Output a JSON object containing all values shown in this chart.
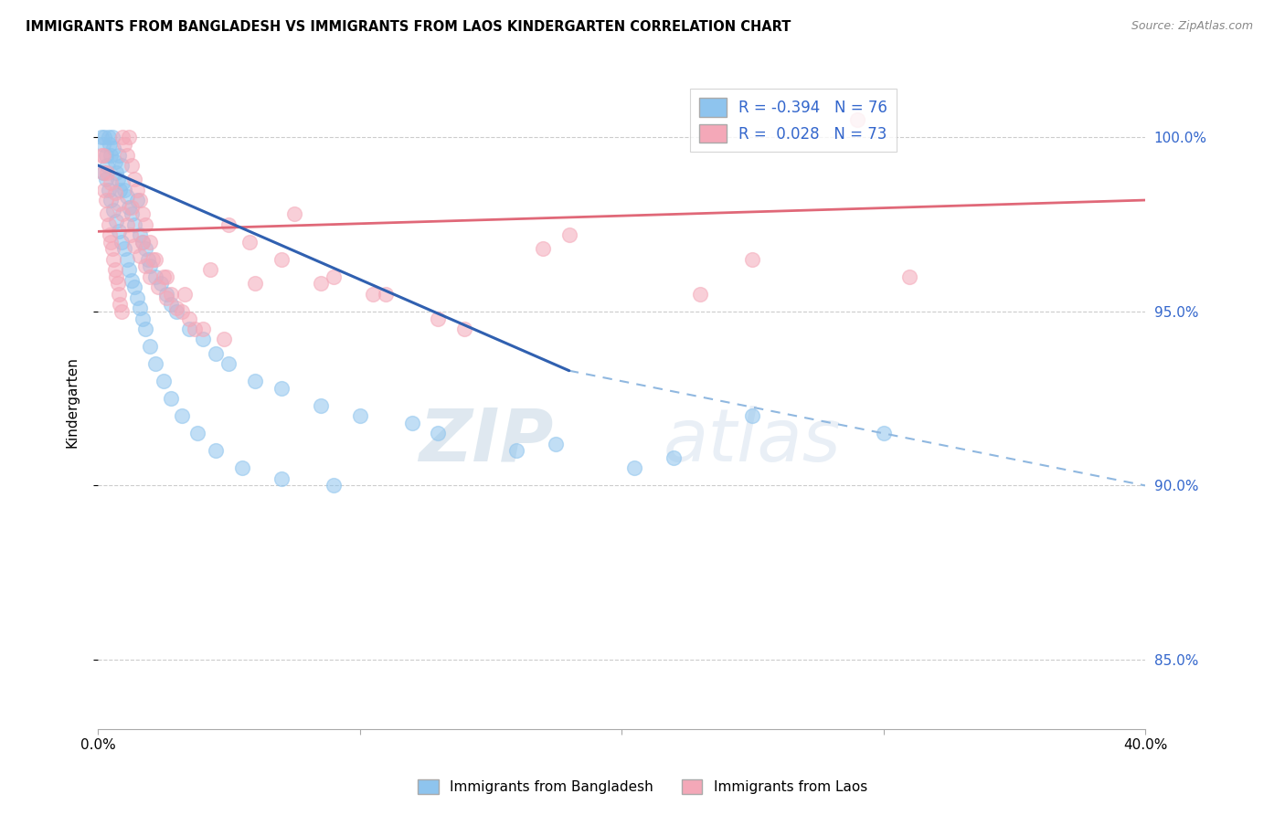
{
  "title": "IMMIGRANTS FROM BANGLADESH VS IMMIGRANTS FROM LAOS KINDERGARTEN CORRELATION CHART",
  "source": "Source: ZipAtlas.com",
  "ylabel": "Kindergarten",
  "xlim": [
    0.0,
    40.0
  ],
  "ylim": [
    83.0,
    101.8
  ],
  "bangladesh_R": -0.394,
  "bangladesh_N": 76,
  "laos_R": 0.028,
  "laos_N": 73,
  "color_bangladesh": "#8EC4EE",
  "color_laos": "#F4A8B8",
  "color_bangladesh_line": "#3060B0",
  "color_laos_line": "#E06878",
  "color_dashed": "#90B8E0",
  "watermark_zip": "ZIP",
  "watermark_atlas": "atlas",
  "bangladesh_line_x0": 0.0,
  "bangladesh_line_y0": 99.2,
  "bangladesh_line_x1": 18.0,
  "bangladesh_line_y1": 93.3,
  "bangladesh_dash_x0": 18.0,
  "bangladesh_dash_y0": 93.3,
  "bangladesh_dash_x1": 40.0,
  "bangladesh_dash_y1": 90.0,
  "laos_line_x0": 0.0,
  "laos_line_y0": 97.3,
  "laos_line_x1": 40.0,
  "laos_line_y1": 98.2,
  "bangladesh_scatter_x": [
    0.15,
    0.2,
    0.25,
    0.3,
    0.35,
    0.4,
    0.45,
    0.5,
    0.55,
    0.6,
    0.65,
    0.7,
    0.75,
    0.8,
    0.85,
    0.9,
    0.95,
    1.0,
    1.1,
    1.2,
    1.3,
    1.4,
    1.5,
    1.6,
    1.7,
    1.8,
    1.9,
    2.0,
    2.2,
    2.4,
    2.6,
    2.8,
    3.0,
    3.5,
    4.0,
    4.5,
    5.0,
    6.0,
    7.0,
    8.5,
    10.0,
    13.0,
    17.5,
    22.0,
    0.2,
    0.3,
    0.4,
    0.5,
    0.6,
    0.7,
    0.8,
    0.9,
    1.0,
    1.1,
    1.2,
    1.3,
    1.4,
    1.5,
    1.6,
    1.7,
    1.8,
    2.0,
    2.2,
    2.5,
    2.8,
    3.2,
    3.8,
    4.5,
    5.5,
    7.0,
    9.0,
    12.0,
    16.0,
    20.5,
    25.0,
    30.0
  ],
  "bangladesh_scatter_y": [
    100.0,
    99.8,
    100.0,
    99.5,
    99.2,
    100.0,
    99.8,
    99.5,
    100.0,
    99.7,
    99.3,
    99.0,
    98.8,
    99.5,
    98.5,
    99.2,
    98.7,
    98.5,
    98.3,
    98.0,
    97.8,
    97.5,
    98.2,
    97.2,
    97.0,
    96.8,
    96.5,
    96.3,
    96.0,
    95.8,
    95.5,
    95.2,
    95.0,
    94.5,
    94.2,
    93.8,
    93.5,
    93.0,
    92.8,
    92.3,
    92.0,
    91.5,
    91.2,
    90.8,
    99.0,
    98.8,
    98.5,
    98.2,
    97.9,
    97.6,
    97.3,
    97.0,
    96.8,
    96.5,
    96.2,
    95.9,
    95.7,
    95.4,
    95.1,
    94.8,
    94.5,
    94.0,
    93.5,
    93.0,
    92.5,
    92.0,
    91.5,
    91.0,
    90.5,
    90.2,
    90.0,
    91.8,
    91.0,
    90.5,
    92.0,
    91.5
  ],
  "laos_scatter_x": [
    0.15,
    0.2,
    0.25,
    0.3,
    0.35,
    0.4,
    0.45,
    0.5,
    0.55,
    0.6,
    0.65,
    0.7,
    0.75,
    0.8,
    0.85,
    0.9,
    0.95,
    1.0,
    1.1,
    1.2,
    1.3,
    1.4,
    1.5,
    1.6,
    1.7,
    1.8,
    2.0,
    2.2,
    2.5,
    2.8,
    3.2,
    3.7,
    4.3,
    5.0,
    6.0,
    7.5,
    9.0,
    11.0,
    14.0,
    18.0,
    25.0,
    31.0,
    0.2,
    0.35,
    0.5,
    0.65,
    0.8,
    0.95,
    1.1,
    1.25,
    1.4,
    1.6,
    1.8,
    2.0,
    2.3,
    2.6,
    3.0,
    3.5,
    4.0,
    4.8,
    5.8,
    7.0,
    8.5,
    10.5,
    13.0,
    17.0,
    23.0,
    29.0,
    1.3,
    1.7,
    2.1,
    2.6,
    3.3
  ],
  "laos_scatter_y": [
    99.5,
    99.0,
    98.5,
    98.2,
    97.8,
    97.5,
    97.2,
    97.0,
    96.8,
    96.5,
    96.2,
    96.0,
    95.8,
    95.5,
    95.2,
    95.0,
    100.0,
    99.8,
    99.5,
    100.0,
    99.2,
    98.8,
    98.5,
    98.2,
    97.8,
    97.5,
    97.0,
    96.5,
    96.0,
    95.5,
    95.0,
    94.5,
    96.2,
    97.5,
    95.8,
    97.8,
    96.0,
    95.5,
    94.5,
    97.2,
    96.5,
    96.0,
    99.5,
    99.0,
    98.7,
    98.4,
    98.1,
    97.8,
    97.5,
    97.2,
    96.9,
    96.6,
    96.3,
    96.0,
    95.7,
    95.4,
    95.1,
    94.8,
    94.5,
    94.2,
    97.0,
    96.5,
    95.8,
    95.5,
    94.8,
    96.8,
    95.5,
    100.5,
    98.0,
    97.0,
    96.5,
    96.0,
    95.5
  ],
  "right_yticks": [
    85.0,
    90.0,
    95.0,
    100.0
  ],
  "right_ytick_labels": [
    "85.0%",
    "90.0%",
    "95.0%",
    "100.0%"
  ]
}
